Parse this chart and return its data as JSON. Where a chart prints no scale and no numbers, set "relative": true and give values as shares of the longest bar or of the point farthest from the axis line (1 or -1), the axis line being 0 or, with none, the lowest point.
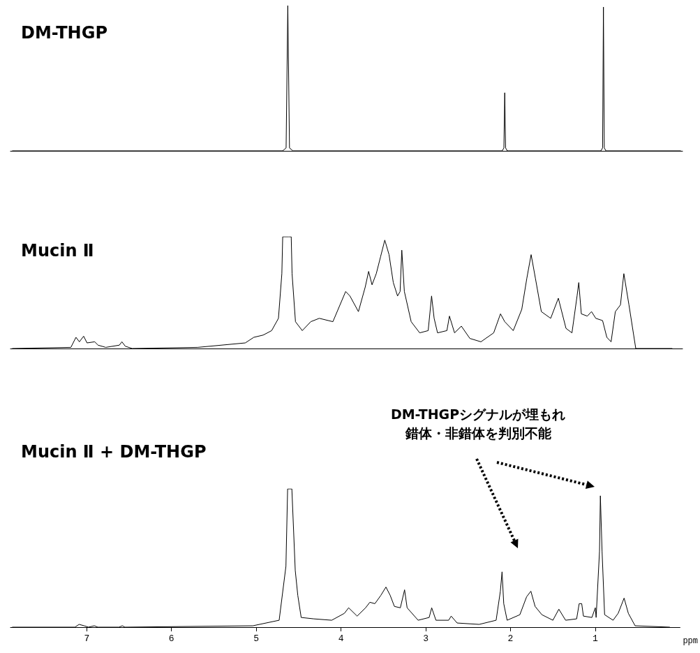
{
  "chart_data": [
    {
      "type": "line",
      "title": "DM-THGP",
      "relative": true,
      "xlim": [
        7.9,
        0
      ],
      "tick_labels": false,
      "series": [
        {
          "color": "#000000",
          "x": [
            7.88,
            4.7,
            4.66,
            4.64,
            4.62,
            4.58,
            2.12,
            2.1,
            2.09,
            2.08,
            2.06,
            0.96,
            0.94,
            0.93,
            0.92,
            0.9,
            0.02
          ],
          "values": [
            0,
            0,
            0.02,
            1,
            0.02,
            0,
            0,
            0.02,
            0.4,
            0.02,
            0,
            0,
            0.02,
            0.99,
            0.02,
            0,
            0
          ]
        }
      ]
    },
    {
      "type": "line",
      "title": "Mucin Ⅱ",
      "relative": true,
      "xlim": [
        7.9,
        0
      ],
      "tick_labels": false,
      "series": [
        {
          "color": "#000000",
          "x": [
            7.88,
            7.19,
            7.13,
            7.09,
            7.04,
            7.0,
            6.91,
            6.87,
            6.78,
            6.62,
            6.59,
            6.55,
            6.47,
            5.7,
            5.14,
            5.04,
            4.93,
            4.83,
            4.75,
            4.71,
            4.7,
            4.63,
            4.6,
            4.59,
            4.55,
            4.47,
            4.37,
            4.27,
            4.11,
            3.96,
            3.91,
            3.81,
            3.73,
            3.69,
            3.65,
            3.6,
            3.55,
            3.5,
            3.45,
            3.4,
            3.35,
            3.32,
            3.3,
            3.27,
            3.19,
            3.09,
            2.99,
            2.95,
            2.92,
            2.88,
            2.77,
            2.74,
            2.68,
            2.6,
            2.5,
            2.37,
            2.22,
            2.14,
            2.09,
            1.99,
            1.89,
            1.83,
            1.78,
            1.73,
            1.66,
            1.55,
            1.46,
            1.37,
            1.3,
            1.24,
            1.22,
            1.19,
            1.12,
            1.07,
            1.02,
            0.94,
            0.89,
            0.84,
            0.79,
            0.73,
            0.69,
            0.63,
            0.55,
            0.12
          ],
          "values": [
            0,
            0.01,
            0.1,
            0.06,
            0.11,
            0.05,
            0.06,
            0.03,
            0.01,
            0.03,
            0.06,
            0.02,
            0,
            0.01,
            0.05,
            0.1,
            0.12,
            0.16,
            0.27,
            0.67,
            1,
            1,
            1,
            0.67,
            0.24,
            0.16,
            0.24,
            0.27,
            0.24,
            0.51,
            0.47,
            0.33,
            0.55,
            0.69,
            0.57,
            0.67,
            0.82,
            0.97,
            0.84,
            0.59,
            0.47,
            0.51,
            0.88,
            0.51,
            0.24,
            0.14,
            0.16,
            0.47,
            0.27,
            0.14,
            0.16,
            0.29,
            0.14,
            0.2,
            0.09,
            0.06,
            0.14,
            0.31,
            0.24,
            0.16,
            0.35,
            0.63,
            0.84,
            0.63,
            0.33,
            0.27,
            0.45,
            0.18,
            0.14,
            0.47,
            0.59,
            0.31,
            0.29,
            0.33,
            0.27,
            0.25,
            0.1,
            0.06,
            0.33,
            0.39,
            0.67,
            0.39,
            0,
            0
          ]
        }
      ]
    },
    {
      "type": "line",
      "title": "Mucin Ⅱ + DM-THGP",
      "relative": true,
      "xlabel": "ppm",
      "xlim": [
        7.9,
        0
      ],
      "xticks": [
        7,
        6,
        5,
        4,
        3,
        2,
        1
      ],
      "annotations": [
        "DM-THGPシグナルが埋もれ",
        "錯体・非錯体を判別不能"
      ],
      "series": [
        {
          "color": "#000000",
          "x": [
            7.88,
            7.14,
            7.09,
            7.03,
            6.98,
            6.91,
            6.87,
            6.62,
            6.58,
            6.55,
            5.04,
            4.73,
            4.65,
            4.63,
            4.58,
            4.54,
            4.51,
            4.47,
            4.32,
            4.11,
            3.96,
            3.91,
            3.81,
            3.71,
            3.66,
            3.6,
            3.53,
            3.47,
            3.42,
            3.37,
            3.3,
            3.25,
            3.22,
            3.09,
            2.96,
            2.93,
            2.88,
            2.73,
            2.7,
            2.63,
            2.37,
            2.17,
            2.12,
            2.1,
            2.08,
            2.04,
            1.89,
            1.81,
            1.76,
            1.71,
            1.63,
            1.5,
            1.43,
            1.35,
            1.22,
            1.19,
            1.16,
            1.14,
            1.04,
            1.0,
            0.99,
            0.95,
            0.94,
            0.92,
            0.89,
            0.79,
            0.73,
            0.66,
            0.61,
            0.53,
            0.12
          ],
          "values": [
            0,
            0,
            0.02,
            0.01,
            0,
            0.01,
            0,
            0,
            0.01,
            0,
            0.01,
            0.05,
            0.44,
            1,
            1,
            0.41,
            0.23,
            0.07,
            0.06,
            0.05,
            0.1,
            0.14,
            0.08,
            0.14,
            0.18,
            0.17,
            0.23,
            0.29,
            0.23,
            0.15,
            0.14,
            0.27,
            0.14,
            0.05,
            0.07,
            0.14,
            0.05,
            0.05,
            0.08,
            0.03,
            0.02,
            0.05,
            0.26,
            0.4,
            0.17,
            0.05,
            0.09,
            0.22,
            0.26,
            0.15,
            0.09,
            0.05,
            0.13,
            0.05,
            0.06,
            0.17,
            0.17,
            0.08,
            0.07,
            0.14,
            0.07,
            0.55,
            0.95,
            0.55,
            0.09,
            0.05,
            0.1,
            0.21,
            0.1,
            0.01,
            0
          ]
        }
      ]
    }
  ]
}
